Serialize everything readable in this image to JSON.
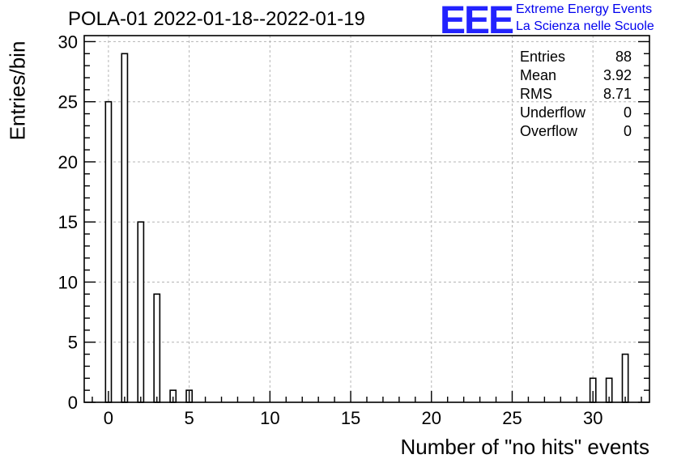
{
  "chart_data": {
    "type": "bar",
    "title": "POLA-01 2022-01-18--2022-01-19",
    "xlabel": "Number of \"no hits\" events",
    "ylabel": "Entries/bin",
    "xlim": [
      -1.5,
      33.5
    ],
    "ylim": [
      0,
      30.5
    ],
    "grid": true,
    "x": [
      0,
      1,
      2,
      3,
      4,
      5,
      30,
      31,
      32
    ],
    "values": [
      25,
      29,
      15,
      9,
      1,
      1,
      2,
      2,
      4
    ],
    "x_ticks": [
      "0",
      "5",
      "10",
      "15",
      "20",
      "25",
      "30"
    ],
    "y_ticks": [
      "0",
      "5",
      "10",
      "15",
      "20",
      "25",
      "30"
    ]
  },
  "logo": {
    "mark": "EEE",
    "line1": "Extreme Energy Events",
    "line2": "La Scienza nelle Scuole"
  },
  "stats": [
    {
      "label": "Entries",
      "value": "88"
    },
    {
      "label": "Mean",
      "value": "3.92"
    },
    {
      "label": "RMS",
      "value": "8.71"
    },
    {
      "label": "Underflow",
      "value": "0"
    },
    {
      "label": "Overflow",
      "value": "0"
    }
  ]
}
